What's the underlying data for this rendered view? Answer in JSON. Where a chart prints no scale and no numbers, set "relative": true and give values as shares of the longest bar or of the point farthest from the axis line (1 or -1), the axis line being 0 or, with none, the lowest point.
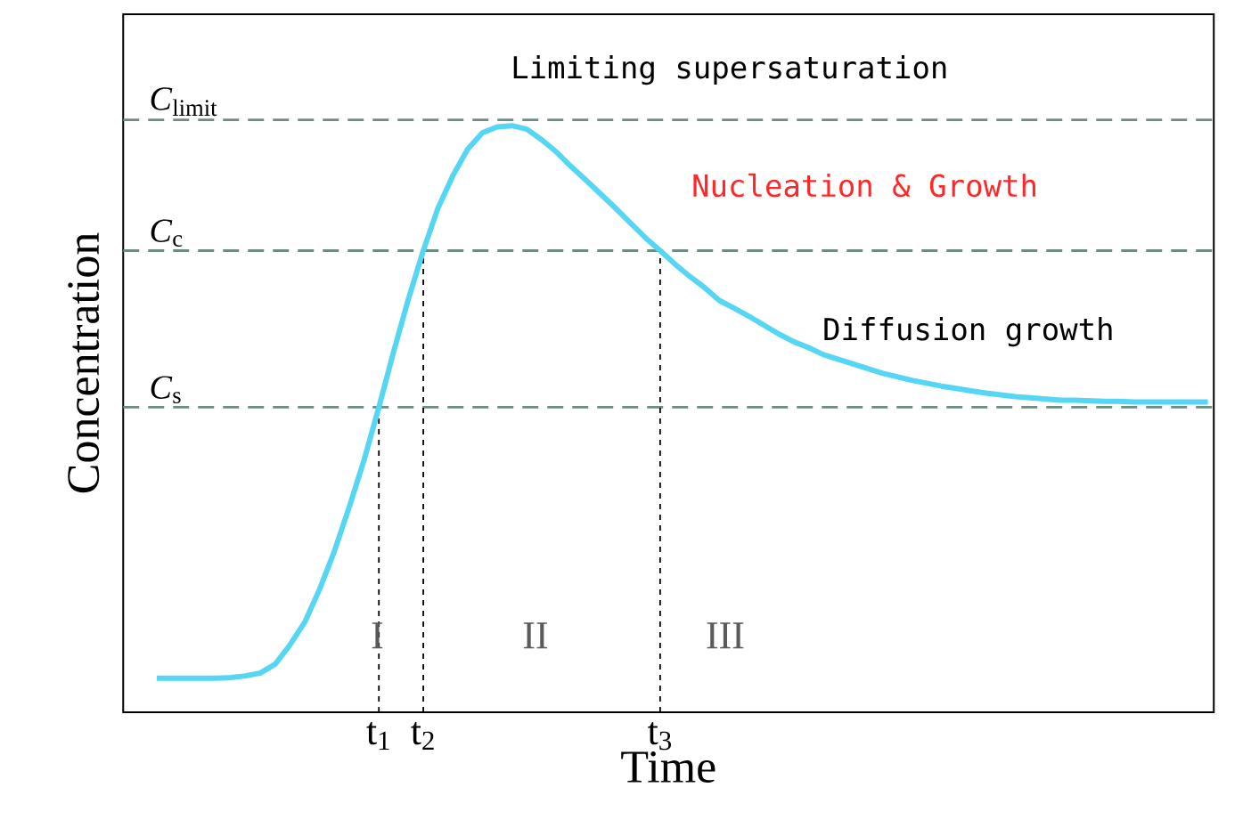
{
  "chart_data": {
    "type": "line",
    "relative": true,
    "xlabel": "Time",
    "ylabel": "Concentration",
    "categories": [
      null,
      null,
      null,
      null,
      null,
      null,
      null,
      null,
      null,
      null,
      null,
      null,
      null,
      null,
      null,
      "t$_{1}$",
      null,
      null,
      "t$_{2}$",
      null,
      null,
      null,
      null,
      null,
      null,
      null,
      null,
      null,
      null,
      null,
      null,
      null,
      null,
      null,
      "t$_{3}$",
      null,
      null,
      null,
      null,
      null,
      null,
      null,
      null,
      null,
      null,
      null,
      null,
      null,
      null,
      null,
      null,
      null,
      null,
      null,
      null,
      null,
      null,
      null,
      null,
      null,
      null,
      null,
      null,
      null,
      null,
      null,
      null,
      null,
      null,
      null,
      null,
      null
    ],
    "series": [
      {
        "color": "#55d6f5",
        "values": [
          0.058,
          0.058,
          0.058,
          0.058,
          0.058,
          0.059,
          0.062,
          0.067,
          0.082,
          0.115,
          0.154,
          0.21,
          0.275,
          0.35,
          0.43,
          0.52,
          0.615,
          0.705,
          0.787,
          0.86,
          0.915,
          0.96,
          0.988,
          0.998,
          1,
          0.994,
          0.976,
          0.955,
          0.93,
          0.907,
          0.883,
          0.859,
          0.834,
          0.809,
          0.787,
          0.764,
          0.743,
          0.724,
          0.702,
          0.689,
          0.675,
          0.66,
          0.645,
          0.632,
          0.622,
          0.61,
          0.602,
          0.594,
          0.586,
          0.578,
          0.572,
          0.566,
          0.561,
          0.556,
          0.552,
          0.548,
          0.544,
          0.541,
          0.538,
          0.536,
          0.534,
          0.532,
          0.532,
          0.531,
          0.53,
          0.53,
          0.529,
          0.529,
          0.529,
          0.529,
          0.529,
          0.529
        ]
      }
    ],
    "ref_lines": [
      {
        "axis": "y",
        "value": 1.01,
        "label": "*C*$_{limit}$",
        "color": "#6e8b84",
        "line_style": "dashed"
      },
      {
        "axis": "y",
        "value": 0.787,
        "label": "*C*$_{c}$",
        "color": "#6e8b84",
        "line_style": "dashed"
      },
      {
        "axis": "y",
        "value": 0.52,
        "label": "*C*$_{s}$",
        "color": "#6e8b84",
        "line_style": "dashed"
      },
      {
        "axis": "x",
        "value": "t$_{1}$",
        "color": "#000000",
        "line_style": "dashed"
      },
      {
        "axis": "x",
        "value": "t$_{2}$",
        "color": "#000000",
        "line_style": "dashed"
      },
      {
        "axis": "x",
        "value": "t$_{3}$",
        "color": "#000000",
        "line_style": "dashed"
      }
    ],
    "annotations": [
      "Limiting supersaturation",
      "Nucleation & Growth",
      "Diffusion growth",
      "I",
      "II",
      "III"
    ]
  }
}
